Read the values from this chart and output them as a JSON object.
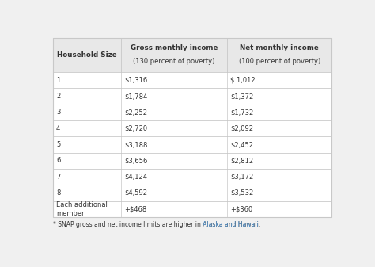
{
  "col1_header_line1": "Household Size",
  "col2_header_line1": "Gross monthly income",
  "col2_header_line2": "(130 percent of poverty)",
  "col3_header_line1": "Net monthly income",
  "col3_header_line2": "(100 percent of poverty)",
  "rows": [
    [
      "1",
      "$1,316",
      "$ 1,012"
    ],
    [
      "2",
      "$1,784",
      "$1,372"
    ],
    [
      "3",
      "$2,252",
      "$1,732"
    ],
    [
      "4",
      "$2,720",
      "$2,092"
    ],
    [
      "5",
      "$3,188",
      "$2,452"
    ],
    [
      "6",
      "$3,656",
      "$2,812"
    ],
    [
      "7",
      "$4,124",
      "$3,172"
    ],
    [
      "8",
      "$4,592",
      "$3,532"
    ],
    [
      "Each additional\nmember",
      "+$468",
      "+$360"
    ]
  ],
  "footnote_normal": "* SNAP gross and net income limits are higher in ",
  "footnote_link": "Alaska and Hawaii",
  "footnote_end": ".",
  "bg_color": "#f0f0f0",
  "table_bg": "#ffffff",
  "header_bg": "#e8e8e8",
  "border_color": "#c8c8c8",
  "text_color": "#333333",
  "link_color": "#5b9bd5",
  "header_text_color": "#333333"
}
